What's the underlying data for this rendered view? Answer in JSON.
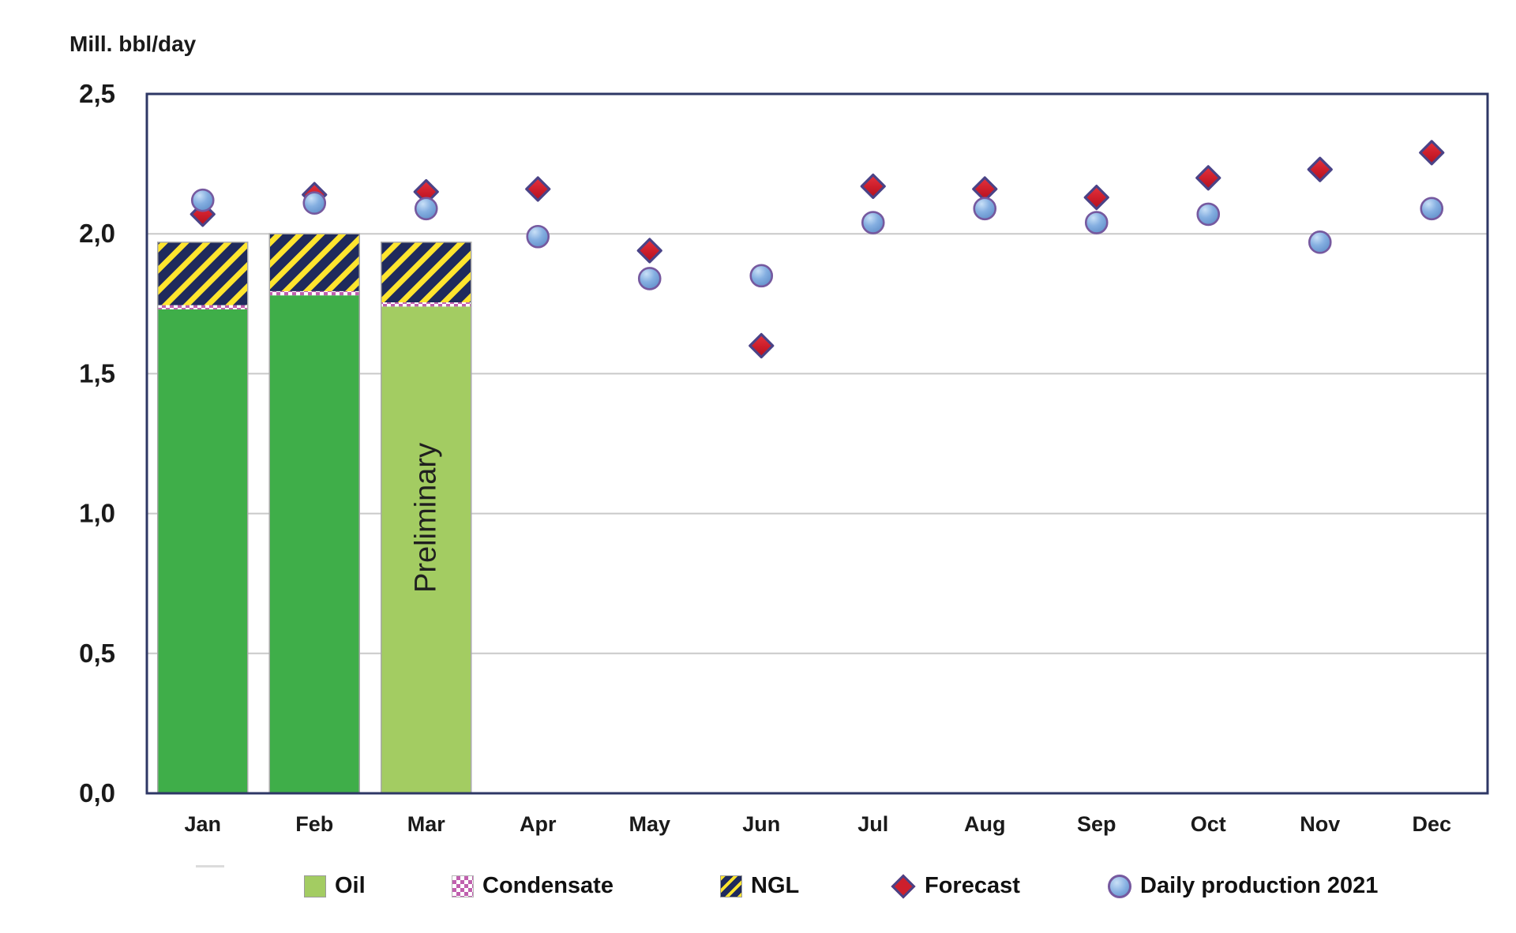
{
  "chart_data": {
    "type": "combo-stacked-bar-scatter",
    "ylabel": "Mill. bbl/day",
    "ylim": [
      0,
      2.5
    ],
    "ytick_labels": [
      "0,0",
      "0,5",
      "1,0",
      "1,5",
      "2,0",
      "2,5"
    ],
    "grid": true,
    "legend_position": "bottom",
    "categories": [
      "Jan",
      "Feb",
      "Mar",
      "Apr",
      "May",
      "Jun",
      "Jul",
      "Aug",
      "Sep",
      "Oct",
      "Nov",
      "Dec"
    ],
    "bars": [
      {
        "month": "Jan",
        "oil": 1.73,
        "condensate": 0.015,
        "ngl": 0.225,
        "preliminary": false
      },
      {
        "month": "Feb",
        "oil": 1.78,
        "condensate": 0.015,
        "ngl": 0.205,
        "preliminary": false
      },
      {
        "month": "Mar",
        "oil": 1.74,
        "condensate": 0.015,
        "ngl": 0.215,
        "preliminary": true
      }
    ],
    "preliminary_label": "Preliminary",
    "series": [
      {
        "name": "Forecast",
        "marker": "diamond",
        "values": [
          2.07,
          2.14,
          2.15,
          2.16,
          1.94,
          1.6,
          2.17,
          2.16,
          2.13,
          2.2,
          2.23,
          2.29
        ]
      },
      {
        "name": "Daily production 2021",
        "marker": "circle",
        "values": [
          2.12,
          2.11,
          2.09,
          1.99,
          1.84,
          1.85,
          2.04,
          2.09,
          2.04,
          2.07,
          1.97,
          2.09
        ]
      }
    ],
    "colors": {
      "oil": "#3FAE49",
      "oil_preliminary": "#A3CC62",
      "ngl_navy": "#1F2A5C",
      "ngl_yellow": "#FFE52E",
      "condensate_pink": "#C060AE",
      "condensate_white": "#FFFFFF",
      "forecast_fill": "#CE1F2C",
      "forecast_stroke": "#4A4387",
      "daily_fill": "#76A5DB",
      "daily_stroke": "#76599F",
      "plot_border": "#2E3765",
      "gridline": "#C9C9C9",
      "text": "#1A1A1A"
    }
  },
  "legend": {
    "items": [
      {
        "label": "Oil",
        "swatch": "oil-square"
      },
      {
        "label": "Condensate",
        "swatch": "condensate-square"
      },
      {
        "label": "NGL",
        "swatch": "ngl-square"
      },
      {
        "label": "Forecast",
        "swatch": "forecast-diamond"
      },
      {
        "label": "Daily production 2021",
        "swatch": "daily-circle"
      }
    ]
  }
}
